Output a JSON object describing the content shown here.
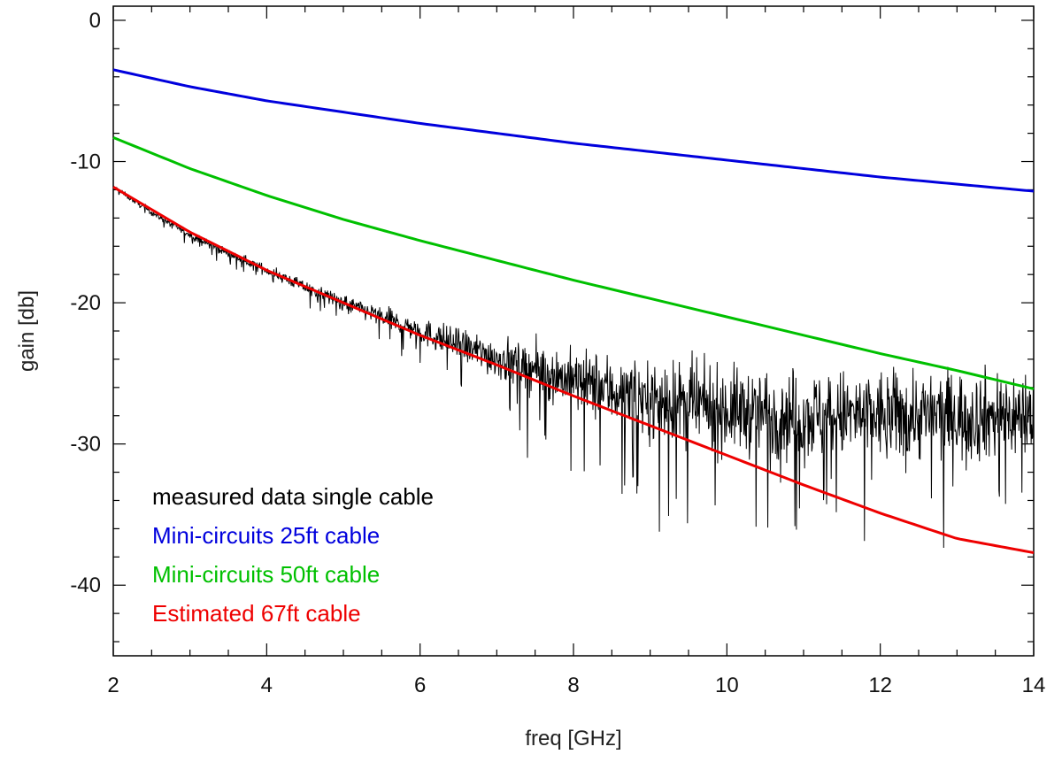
{
  "chart_data": {
    "type": "line",
    "title": "",
    "xlabel": "freq [GHz]",
    "ylabel": "gain [db]",
    "xlim": [
      2,
      14
    ],
    "ylim": [
      -45,
      1
    ],
    "x_ticks": [
      2,
      4,
      6,
      8,
      10,
      12,
      14
    ],
    "x_tick_labels": [
      "2",
      "4",
      "6",
      "8",
      "10",
      "12",
      "14"
    ],
    "y_ticks": [
      0,
      -10,
      -20,
      -30,
      -40
    ],
    "y_tick_labels": [
      "0",
      "-10",
      "-20",
      "-30",
      "-40"
    ],
    "x_minor_step": 0.5,
    "y_minor_step": 2,
    "grid": false,
    "legend_position": "bottom-left",
    "series": [
      {
        "name": "measured data single cable",
        "color": "#000000",
        "style": "noisy",
        "x": [
          2,
          2.5,
          3,
          3.5,
          4,
          4.5,
          5,
          5.5,
          6,
          6.5,
          7,
          7.5,
          8,
          8.5,
          9,
          9.5,
          10,
          10.5,
          11,
          11.5,
          12,
          12.5,
          13,
          13.5,
          14
        ],
        "y": [
          -11.8,
          -13.6,
          -15.2,
          -16.5,
          -17.7,
          -18.9,
          -20.0,
          -21.0,
          -22.0,
          -23.0,
          -23.9,
          -24.7,
          -25.5,
          -26.2,
          -26.8,
          -27.3,
          -27.6,
          -27.8,
          -28.0,
          -28.0,
          -28.0,
          -28.0,
          -28.0,
          -28.0,
          -28.0
        ],
        "noise_amplitude_db": [
          0.2,
          0.25,
          0.3,
          0.35,
          0.4,
          0.5,
          0.6,
          0.8,
          1.0,
          1.3,
          1.6,
          2.0,
          2.4,
          2.8,
          3.0,
          3.2,
          3.3,
          3.4,
          3.5,
          3.5,
          3.5,
          3.5,
          3.5,
          3.5,
          3.5
        ]
      },
      {
        "name": "Mini-circuits 25ft cable",
        "color": "#0000dd",
        "style": "line",
        "x": [
          2,
          3,
          4,
          5,
          6,
          7,
          8,
          9,
          10,
          11,
          12,
          13,
          14
        ],
        "y": [
          -3.5,
          -4.7,
          -5.7,
          -6.5,
          -7.3,
          -8.0,
          -8.7,
          -9.3,
          -9.9,
          -10.5,
          -11.1,
          -11.6,
          -12.1
        ]
      },
      {
        "name": "Mini-circuits 50ft cable",
        "color": "#00c000",
        "style": "line",
        "x": [
          2,
          3,
          4,
          5,
          6,
          7,
          8,
          9,
          10,
          11,
          12,
          13,
          14
        ],
        "y": [
          -8.3,
          -10.5,
          -12.4,
          -14.1,
          -15.6,
          -17.0,
          -18.4,
          -19.7,
          -21.0,
          -22.3,
          -23.6,
          -24.8,
          -26.1
        ]
      },
      {
        "name": "Estimated 67ft cable",
        "color": "#ee0000",
        "style": "line",
        "x": [
          2,
          3,
          4,
          5,
          6,
          7,
          8,
          9,
          10,
          11,
          12,
          13,
          14
        ],
        "y": [
          -11.8,
          -15.0,
          -17.7,
          -20.0,
          -22.3,
          -24.4,
          -26.6,
          -28.7,
          -30.8,
          -32.9,
          -34.9,
          -36.7,
          -37.7
        ]
      }
    ]
  }
}
